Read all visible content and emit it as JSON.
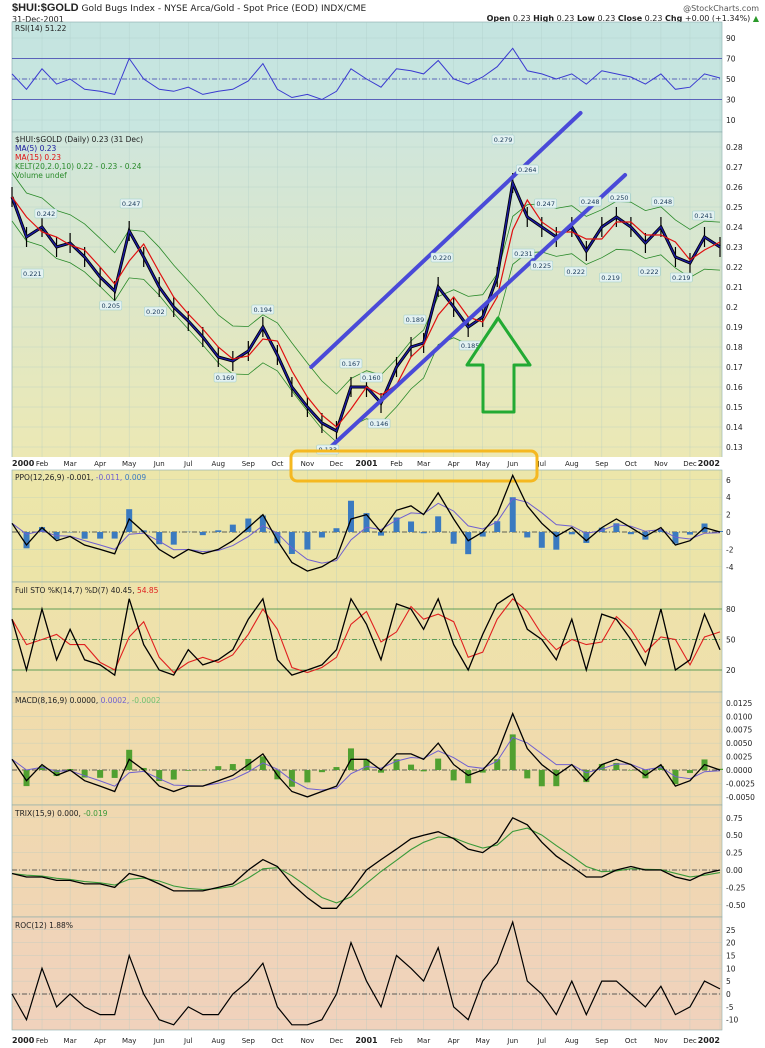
{
  "header": {
    "symbol": "$HUI:$GOLD",
    "description": "Gold Bugs Index - NYSE Arca/Gold - Spot Price (EOD) INDX/CME",
    "date": "31-Dec-2001",
    "brand": "@StockCharts.com",
    "open_label": "Open",
    "open": "0.23",
    "high_label": "High",
    "high": "0.23",
    "low_label": "Low",
    "low": "0.23",
    "close_label": "Close",
    "close": "0.23",
    "chg_label": "Chg",
    "chg": "+0.00 (+1.34%)",
    "chg_icon": "up-triangle-icon"
  },
  "legends": {
    "rsi": "RSI(14) 51.22",
    "price": "$HUI:$GOLD (Daily) 0.23 (31 Dec)",
    "ma5": "MA(5) 0.23",
    "ma15": "MA(15) 0.23",
    "kelt": "KELT(20,2.0,10) 0.22 - 0.23 - 0.24",
    "volume": "Volume undef",
    "ppo": "PPO(12,26,9) -0.001,",
    "ppo_signal": " -0.011,",
    "ppo_hist": " 0.009",
    "sto": "Full STO %K(14,7) %D(7) 40.45,",
    "sto_d": " 54.85",
    "macd": "MACD(8,16,9) 0.0000,",
    "macd_signal": " 0.0002,",
    "macd_hist": " -0.0002",
    "trix": "TRIX(15,9) 0.000,",
    "trix_signal": " -0.019",
    "roc": "ROC(12) 1.88%"
  },
  "colors": {
    "ma5": "#1a1aa0",
    "ma15": "#e01010",
    "kelt": "#2a8a2a",
    "channel": "#4a4ad8",
    "arrow": "#22aa33",
    "highlight": "#f5b820",
    "signal": "#7060d0",
    "hist": "#3a7ac0",
    "macd_hist": "#50a030",
    "trix_signal": "#3a9a3a",
    "sto_d": "#e02020"
  },
  "chart_data": {
    "type": "line",
    "x_axis": {
      "ticks": [
        "2000",
        "Feb",
        "Mar",
        "Apr",
        "May",
        "Jun",
        "Jul",
        "Aug",
        "Sep",
        "Oct",
        "Nov",
        "Dec",
        "2001",
        "Feb",
        "Mar",
        "Apr",
        "May",
        "Jun",
        "Jul",
        "Aug",
        "Sep",
        "Oct",
        "Nov",
        "Dec",
        "2002"
      ],
      "range": [
        "2000-01-01",
        "2002-01-01"
      ]
    },
    "dates": [
      "2000-01-01",
      "2000-01-16",
      "2000-02-01",
      "2000-02-16",
      "2000-03-01",
      "2000-03-16",
      "2000-04-01",
      "2000-04-16",
      "2000-05-01",
      "2000-05-16",
      "2000-06-01",
      "2000-06-16",
      "2000-07-01",
      "2000-07-16",
      "2000-08-01",
      "2000-08-16",
      "2000-09-01",
      "2000-09-16",
      "2000-10-01",
      "2000-10-16",
      "2000-11-01",
      "2000-11-16",
      "2000-12-01",
      "2000-12-16",
      "2001-01-01",
      "2001-01-16",
      "2001-02-01",
      "2001-02-16",
      "2001-03-01",
      "2001-03-16",
      "2001-04-01",
      "2001-04-16",
      "2001-05-01",
      "2001-05-16",
      "2001-06-01",
      "2001-06-16",
      "2001-07-01",
      "2001-07-16",
      "2001-08-01",
      "2001-08-16",
      "2001-09-01",
      "2001-09-16",
      "2001-10-01",
      "2001-10-16",
      "2001-11-01",
      "2001-11-16",
      "2001-12-01",
      "2001-12-16",
      "2002-01-01"
    ],
    "panels": {
      "rsi": {
        "ticks": [
          90,
          70,
          50,
          30,
          10
        ],
        "range": [
          10,
          90
        ],
        "ref": [
          70,
          50,
          30
        ],
        "values": [
          55,
          40,
          60,
          45,
          50,
          40,
          38,
          35,
          70,
          50,
          40,
          38,
          42,
          35,
          38,
          40,
          48,
          65,
          40,
          32,
          35,
          30,
          38,
          60,
          50,
          42,
          60,
          58,
          55,
          68,
          50,
          45,
          52,
          62,
          80,
          58,
          55,
          50,
          55,
          45,
          58,
          55,
          52,
          45,
          55,
          40,
          42,
          55,
          51
        ]
      },
      "price": {
        "ticks": [
          0.28,
          0.27,
          0.26,
          0.25,
          0.24,
          0.23,
          0.22,
          0.21,
          0.2,
          0.19,
          0.18,
          0.17,
          0.16,
          0.15,
          0.14,
          0.13
        ],
        "range": [
          0.13,
          0.28
        ],
        "values": [
          0.255,
          0.235,
          0.24,
          0.23,
          0.232,
          0.225,
          0.215,
          0.208,
          0.238,
          0.225,
          0.21,
          0.2,
          0.193,
          0.185,
          0.175,
          0.173,
          0.178,
          0.19,
          0.176,
          0.16,
          0.15,
          0.142,
          0.138,
          0.16,
          0.16,
          0.152,
          0.17,
          0.18,
          0.182,
          0.21,
          0.2,
          0.19,
          0.195,
          0.215,
          0.262,
          0.245,
          0.24,
          0.235,
          0.24,
          0.228,
          0.24,
          0.245,
          0.24,
          0.232,
          0.24,
          0.225,
          0.222,
          0.235,
          0.23
        ],
        "annotations": [
          {
            "label": "0.242",
            "date": "2000-02-05",
            "value": 0.242,
            "pos": "above"
          },
          {
            "label": "0.221",
            "date": "2000-01-22",
            "value": 0.221,
            "pos": "below"
          },
          {
            "label": "0.247",
            "date": "2000-05-03",
            "value": 0.247,
            "pos": "above"
          },
          {
            "label": "0.205",
            "date": "2000-04-12",
            "value": 0.205,
            "pos": "below"
          },
          {
            "label": "0.202",
            "date": "2000-05-28",
            "value": 0.202,
            "pos": "below"
          },
          {
            "label": "0.169",
            "date": "2000-08-08",
            "value": 0.169,
            "pos": "below"
          },
          {
            "label": "0.194",
            "date": "2000-09-16",
            "value": 0.194,
            "pos": "above"
          },
          {
            "label": "0.133",
            "date": "2000-11-22",
            "value": 0.133,
            "pos": "below"
          },
          {
            "label": "0.167",
            "date": "2000-12-16",
            "value": 0.167,
            "pos": "above"
          },
          {
            "label": "0.160",
            "date": "2001-01-06",
            "value": 0.16,
            "pos": "above"
          },
          {
            "label": "0.146",
            "date": "2001-01-14",
            "value": 0.146,
            "pos": "below"
          },
          {
            "label": "0.189",
            "date": "2001-02-20",
            "value": 0.189,
            "pos": "above"
          },
          {
            "label": "0.220",
            "date": "2001-03-20",
            "value": 0.22,
            "pos": "above"
          },
          {
            "label": "0.185",
            "date": "2001-04-18",
            "value": 0.185,
            "pos": "below"
          },
          {
            "label": "0.279",
            "date": "2001-05-22",
            "value": 0.279,
            "pos": "above"
          },
          {
            "label": "0.264",
            "date": "2001-06-16",
            "value": 0.264,
            "pos": "above"
          },
          {
            "label": "0.231",
            "date": "2001-06-12",
            "value": 0.231,
            "pos": "below"
          },
          {
            "label": "0.247",
            "date": "2001-07-05",
            "value": 0.247,
            "pos": "above"
          },
          {
            "label": "0.225",
            "date": "2001-07-01",
            "value": 0.225,
            "pos": "below"
          },
          {
            "label": "0.248",
            "date": "2001-08-20",
            "value": 0.248,
            "pos": "above"
          },
          {
            "label": "0.222",
            "date": "2001-08-05",
            "value": 0.222,
            "pos": "below"
          },
          {
            "label": "0.250",
            "date": "2001-09-19",
            "value": 0.25,
            "pos": "above"
          },
          {
            "label": "0.219",
            "date": "2001-09-10",
            "value": 0.219,
            "pos": "below"
          },
          {
            "label": "0.222",
            "date": "2001-10-20",
            "value": 0.222,
            "pos": "below"
          },
          {
            "label": "0.248",
            "date": "2001-11-03",
            "value": 0.248,
            "pos": "above"
          },
          {
            "label": "0.219",
            "date": "2001-11-22",
            "value": 0.219,
            "pos": "below"
          },
          {
            "label": "0.241",
            "date": "2001-12-15",
            "value": 0.241,
            "pos": "above"
          }
        ],
        "channel_lines": [
          {
            "from": {
              "date": "2000-11-05",
              "value": 0.17
            },
            "to": {
              "date": "2001-08-10",
              "value": 0.297
            }
          },
          {
            "from": {
              "date": "2000-11-25",
              "value": 0.13
            },
            "to": {
              "date": "2001-09-25",
              "value": 0.266
            }
          }
        ]
      },
      "ppo": {
        "ticks": [
          6,
          4,
          2,
          0,
          -2,
          -4
        ],
        "range": [
          -5,
          7
        ],
        "ref": [
          0
        ],
        "values": [
          1,
          -1.5,
          0.5,
          -1,
          -0.5,
          -1.5,
          -2,
          -2.5,
          1.5,
          0,
          -2,
          -3,
          -2,
          -2.5,
          -2,
          -1,
          0.5,
          2,
          -1,
          -3.5,
          -4.5,
          -4,
          -3,
          1.5,
          2,
          0,
          2.5,
          3,
          2,
          4.5,
          1.5,
          -1,
          0,
          2,
          6.5,
          3,
          1,
          -0.5,
          0.5,
          -1,
          0.5,
          1.5,
          0.5,
          -0.5,
          0.5,
          -1.5,
          -1,
          0.5,
          0
        ]
      },
      "sto": {
        "ticks": [
          80,
          50,
          20
        ],
        "range": [
          0,
          100
        ],
        "ref": [
          80,
          50,
          20
        ],
        "values": [
          70,
          20,
          80,
          30,
          60,
          30,
          25,
          15,
          90,
          45,
          20,
          15,
          40,
          25,
          30,
          40,
          70,
          90,
          30,
          15,
          20,
          25,
          40,
          90,
          65,
          30,
          85,
          80,
          60,
          90,
          45,
          20,
          55,
          85,
          95,
          60,
          50,
          30,
          70,
          20,
          75,
          70,
          50,
          25,
          80,
          20,
          30,
          75,
          40
        ]
      },
      "macd": {
        "ticks": [
          0.0125,
          0.01,
          0.0075,
          0.005,
          0.0025,
          0.0,
          -0.0025,
          -0.005
        ],
        "tick_labels": [
          "0.0125",
          "0.0100",
          "0.0075",
          "0.0050",
          "0.0025",
          "0.0000",
          "-0.0025",
          "-0.0050"
        ],
        "range": [
          -0.006,
          0.014
        ],
        "ref": [
          0
        ],
        "values": [
          0.002,
          -0.002,
          0.001,
          -0.001,
          0,
          -0.002,
          -0.003,
          -0.004,
          0.002,
          0,
          -0.003,
          -0.004,
          -0.003,
          -0.003,
          -0.002,
          -0.001,
          0.001,
          0.003,
          -0.001,
          -0.004,
          -0.005,
          -0.004,
          -0.003,
          0.002,
          0.002,
          0,
          0.003,
          0.003,
          0.002,
          0.005,
          0.001,
          -0.001,
          0,
          0.003,
          0.0105,
          0.004,
          0.001,
          -0.001,
          0.001,
          -0.002,
          0.001,
          0.002,
          0.001,
          -0.001,
          0.001,
          -0.003,
          -0.002,
          0.001,
          0
        ]
      },
      "trix": {
        "ticks": [
          0.75,
          0.5,
          0.25,
          0.0,
          -0.25,
          -0.5
        ],
        "tick_labels": [
          "0.75",
          "0.50",
          "0.25",
          "0.00",
          "-0.25",
          "-0.50"
        ],
        "range": [
          -0.65,
          0.9
        ],
        "ref": [
          0
        ],
        "values": [
          -0.05,
          -0.1,
          -0.1,
          -0.15,
          -0.15,
          -0.2,
          -0.2,
          -0.25,
          -0.05,
          -0.1,
          -0.2,
          -0.3,
          -0.3,
          -0.3,
          -0.25,
          -0.2,
          0,
          0.15,
          0.05,
          -0.2,
          -0.4,
          -0.55,
          -0.55,
          -0.3,
          0,
          0.15,
          0.3,
          0.45,
          0.5,
          0.55,
          0.45,
          0.3,
          0.25,
          0.4,
          0.75,
          0.65,
          0.4,
          0.2,
          0.05,
          -0.1,
          -0.1,
          0,
          0.05,
          0,
          0,
          -0.1,
          -0.15,
          -0.05,
          0
        ]
      },
      "roc": {
        "ticks": [
          25,
          20,
          15,
          10,
          5,
          0,
          -5,
          -10
        ],
        "range": [
          -14,
          30
        ],
        "ref": [
          0
        ],
        "values": [
          0,
          -10,
          10,
          -5,
          0,
          -5,
          -8,
          -8,
          15,
          0,
          -10,
          -12,
          -5,
          -8,
          -8,
          0,
          5,
          12,
          -5,
          -12,
          -12,
          -10,
          0,
          20,
          5,
          -5,
          15,
          10,
          5,
          18,
          -5,
          -10,
          5,
          12,
          28,
          5,
          0,
          -8,
          5,
          -8,
          5,
          5,
          0,
          -5,
          3,
          -8,
          -5,
          5,
          2
        ]
      }
    }
  }
}
